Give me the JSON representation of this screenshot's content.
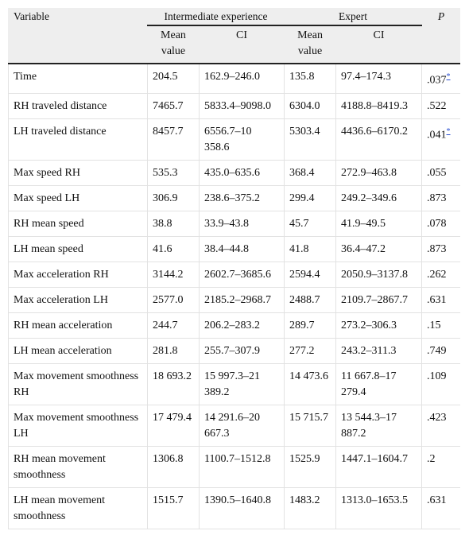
{
  "table": {
    "header": {
      "variable": "Variable",
      "groups": [
        "Intermediate experience",
        "Expert"
      ],
      "p": "P",
      "subheaders": [
        "Mean value",
        "CI",
        "Mean value",
        "CI"
      ]
    },
    "rows": [
      {
        "variable": "Time",
        "cells": [
          "204.5",
          "162.9–246.0",
          "135.8",
          "97.4–174.3"
        ],
        "p": ".037",
        "note": "*"
      },
      {
        "variable": "RH traveled distance",
        "cells": [
          "7465.7",
          "5833.4–9098.0",
          "6304.0",
          "4188.8–8419.3"
        ],
        "p": ".522"
      },
      {
        "variable": "LH traveled distance",
        "cells": [
          "8457.7",
          "6556.7–10 358.6",
          "5303.4",
          "4436.6–6170.2"
        ],
        "p": ".041",
        "note": "*"
      },
      {
        "variable": "Max speed RH",
        "cells": [
          "535.3",
          "435.0–635.6",
          "368.4",
          "272.9–463.8"
        ],
        "p": ".055"
      },
      {
        "variable": "Max speed LH",
        "cells": [
          "306.9",
          "238.6–375.2",
          "299.4",
          "249.2–349.6"
        ],
        "p": ".873"
      },
      {
        "variable": "RH mean speed",
        "cells": [
          "38.8",
          "33.9–43.8",
          "45.7",
          "41.9–49.5"
        ],
        "p": ".078"
      },
      {
        "variable": "LH mean speed",
        "cells": [
          "41.6",
          "38.4–44.8",
          "41.8",
          "36.4–47.2"
        ],
        "p": ".873"
      },
      {
        "variable": "Max acceleration RH",
        "cells": [
          "3144.2",
          "2602.7–3685.6",
          "2594.4",
          "2050.9–3137.8"
        ],
        "p": ".262"
      },
      {
        "variable": "Max acceleration LH",
        "cells": [
          "2577.0",
          "2185.2–2968.7",
          "2488.7",
          "2109.7–2867.7"
        ],
        "p": ".631"
      },
      {
        "variable": "RH mean acceleration",
        "cells": [
          "244.7",
          "206.2–283.2",
          "289.7",
          "273.2–306.3"
        ],
        "p": ".15"
      },
      {
        "variable": "LH mean acceleration",
        "cells": [
          "281.8",
          "255.7–307.9",
          "277.2",
          "243.2–311.3"
        ],
        "p": ".749"
      },
      {
        "variable": "Max movement smoothness RH",
        "cells": [
          "18 693.2",
          "15 997.3–21 389.2",
          "14 473.6",
          "11 667.8–17 279.4"
        ],
        "p": ".109"
      },
      {
        "variable": "Max movement smoothness LH",
        "cells": [
          "17 479.4",
          "14 291.6–20 667.3",
          "15 715.7",
          "13 544.3–17 887.2"
        ],
        "p": ".423"
      },
      {
        "variable": "RH mean movement smoothness",
        "cells": [
          "1306.8",
          "1100.7–1512.8",
          "1525.9",
          "1447.1–1604.7"
        ],
        "p": ".2"
      },
      {
        "variable": "LH mean movement smoothness",
        "cells": [
          "1515.7",
          "1390.5–1640.8",
          "1483.2",
          "1313.0–1653.5"
        ],
        "p": ".631"
      }
    ]
  }
}
